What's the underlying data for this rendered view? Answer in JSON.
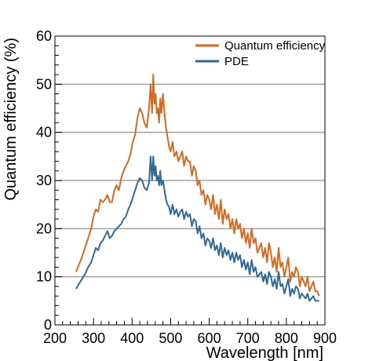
{
  "chart_data": {
    "type": "line",
    "title": "",
    "xlabel": "Wavelength [nm]",
    "ylabel": "Quantum efficiency  (%)",
    "xlim": [
      200,
      900
    ],
    "ylim": [
      0,
      60
    ],
    "xticks": [
      200,
      300,
      400,
      500,
      600,
      700,
      800,
      900
    ],
    "yticks": [
      0,
      10,
      20,
      30,
      40,
      50,
      60
    ],
    "grid": "horizontal",
    "legend_position": "top-right",
    "series": [
      {
        "name": "Quantum efficiency",
        "color": "#d4691f",
        "x": [
          255,
          262,
          270,
          278,
          286,
          294,
          300,
          306,
          312,
          318,
          324,
          330,
          336,
          342,
          348,
          354,
          360,
          366,
          372,
          378,
          384,
          390,
          396,
          402,
          408,
          414,
          420,
          426,
          432,
          438,
          444,
          448,
          452,
          455,
          458,
          461,
          464,
          467,
          470,
          473,
          476,
          480,
          484,
          488,
          492,
          496,
          500,
          505,
          510,
          515,
          520,
          525,
          530,
          535,
          540,
          545,
          550,
          555,
          560,
          565,
          570,
          575,
          580,
          585,
          590,
          595,
          600,
          605,
          610,
          615,
          620,
          625,
          630,
          635,
          640,
          645,
          650,
          655,
          660,
          665,
          670,
          675,
          680,
          685,
          690,
          695,
          700,
          705,
          710,
          715,
          720,
          725,
          730,
          735,
          740,
          745,
          750,
          755,
          760,
          765,
          770,
          775,
          780,
          785,
          790,
          795,
          800,
          805,
          810,
          815,
          820,
          825,
          830,
          835,
          840,
          845,
          850,
          855,
          860,
          865,
          870,
          875,
          880,
          885
        ],
        "values": [
          11,
          12.5,
          14,
          16,
          18,
          20,
          22.5,
          24,
          23.5,
          26,
          25.5,
          26,
          27,
          25.5,
          25.5,
          28,
          29,
          28,
          30.5,
          32,
          33,
          34,
          35.5,
          38,
          39.5,
          43,
          45,
          44,
          42,
          41,
          45,
          50,
          44,
          52,
          46,
          48,
          44,
          45,
          42,
          47,
          44,
          48,
          44,
          41,
          39,
          37,
          36,
          38,
          35,
          36,
          34,
          35,
          36,
          33,
          35,
          34,
          34,
          31,
          33,
          32,
          29,
          30,
          27,
          28,
          25,
          27,
          26,
          24,
          27,
          23,
          25,
          22,
          26,
          21,
          24,
          22,
          23,
          20,
          22,
          19,
          22,
          20,
          21,
          18,
          20,
          17,
          19,
          16,
          20,
          17,
          18,
          15,
          16,
          17,
          14,
          16,
          13,
          17,
          15,
          12,
          14,
          11,
          16,
          12,
          13,
          10,
          12,
          14,
          9,
          11,
          10,
          12,
          11,
          8,
          10,
          9,
          8,
          10,
          7,
          8,
          9,
          7,
          7,
          6
        ]
      },
      {
        "name": "PDE",
        "color": "#2e6a94",
        "x": [
          255,
          262,
          270,
          278,
          286,
          294,
          300,
          306,
          312,
          318,
          324,
          330,
          336,
          342,
          348,
          354,
          360,
          366,
          372,
          378,
          384,
          390,
          396,
          402,
          408,
          414,
          420,
          426,
          432,
          438,
          444,
          448,
          452,
          455,
          458,
          461,
          464,
          467,
          470,
          473,
          476,
          480,
          484,
          488,
          492,
          496,
          500,
          505,
          510,
          515,
          520,
          525,
          530,
          535,
          540,
          545,
          550,
          555,
          560,
          565,
          570,
          575,
          580,
          585,
          590,
          595,
          600,
          605,
          610,
          615,
          620,
          625,
          630,
          635,
          640,
          645,
          650,
          655,
          660,
          665,
          670,
          675,
          680,
          685,
          690,
          695,
          700,
          705,
          710,
          715,
          720,
          725,
          730,
          735,
          740,
          745,
          750,
          755,
          760,
          765,
          770,
          775,
          780,
          785,
          790,
          795,
          800,
          805,
          810,
          815,
          820,
          825,
          830,
          835,
          840,
          845,
          850,
          855,
          860,
          865,
          870,
          875,
          880,
          885
        ],
        "values": [
          7.5,
          8.5,
          9.5,
          10.5,
          12,
          13,
          14.5,
          16,
          15.5,
          17,
          17.5,
          18.5,
          19.5,
          18,
          18.5,
          19.5,
          20,
          20.5,
          21,
          22,
          22.5,
          24,
          25,
          26.5,
          28,
          29.5,
          30.5,
          30,
          28.5,
          28,
          29.5,
          35,
          30,
          35,
          31,
          33,
          30,
          31,
          29,
          32,
          29,
          30,
          28,
          26,
          25,
          24.5,
          23,
          25,
          23,
          24,
          22.5,
          23.5,
          24,
          22,
          23.5,
          22.5,
          23,
          20.5,
          22,
          21.5,
          19,
          20.5,
          18,
          19,
          16.5,
          18,
          17.5,
          16,
          18,
          15.5,
          16.5,
          14.5,
          17,
          14,
          16,
          14.5,
          15.5,
          13.5,
          15,
          13,
          15,
          13.5,
          14.5,
          12,
          13.5,
          11.5,
          13,
          10.5,
          13.5,
          11,
          12,
          10,
          10.5,
          11,
          9,
          10.5,
          8.5,
          11,
          10,
          8,
          9.5,
          7.5,
          11,
          8,
          8.5,
          6.5,
          8,
          9.5,
          6,
          7.5,
          6.5,
          8,
          7.5,
          5.5,
          6.5,
          6,
          5.5,
          6.5,
          5,
          5.5,
          6,
          5,
          5,
          5
        ]
      }
    ]
  }
}
